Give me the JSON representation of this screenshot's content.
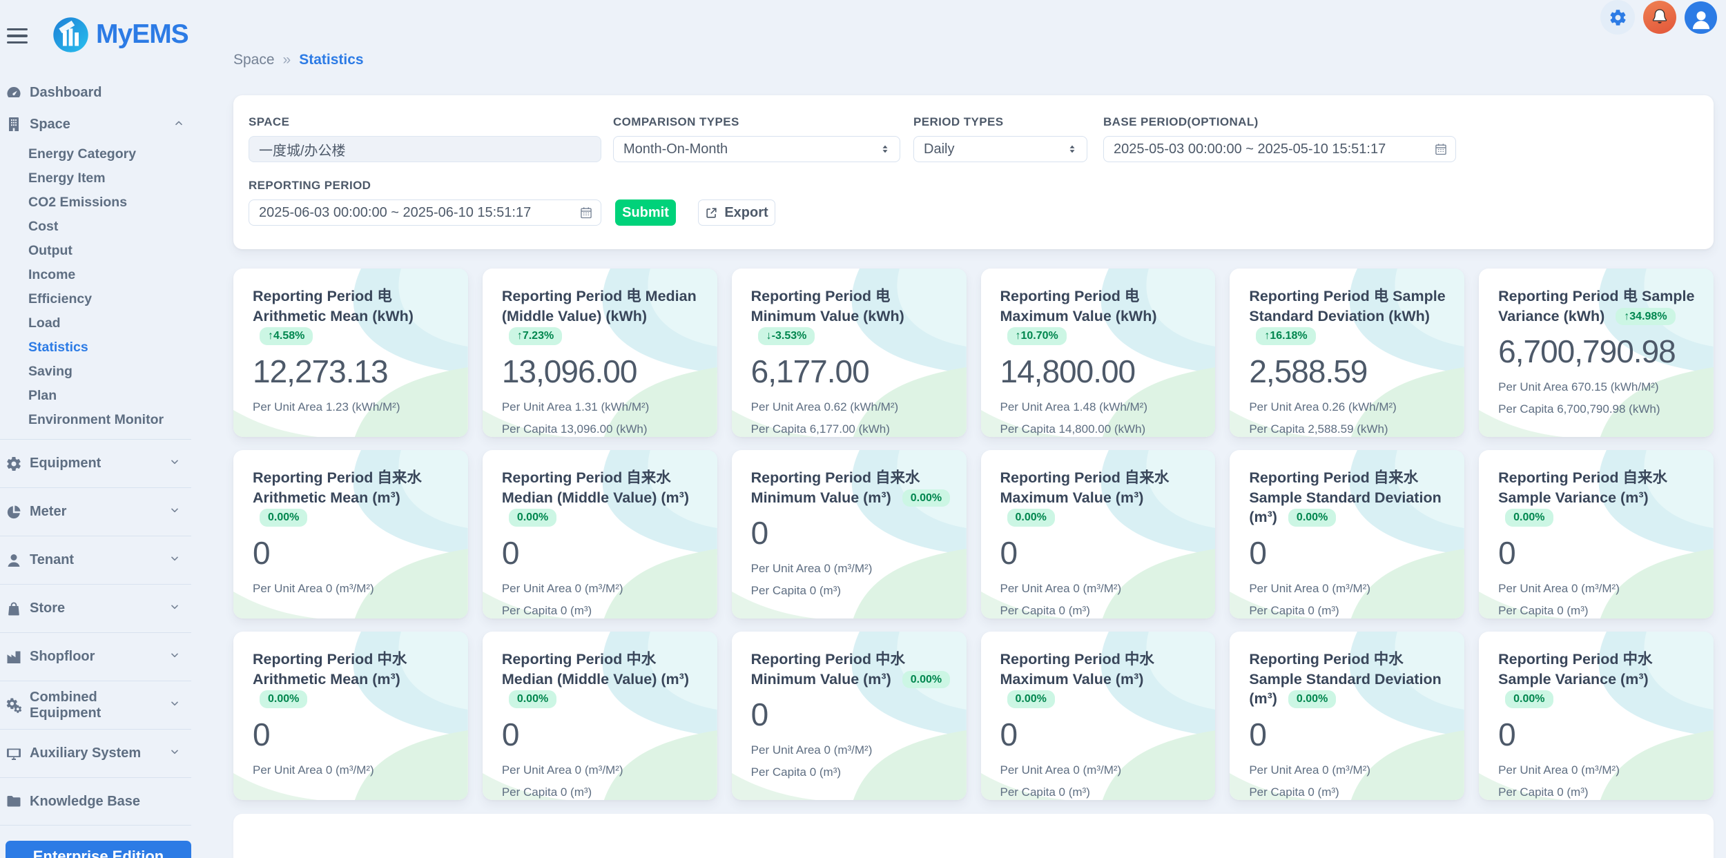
{
  "brand": {
    "title": "MyEMS",
    "logo_icon": "myems-logo-icon"
  },
  "topbar": {
    "icons": [
      {
        "name": "settings-gear-icon"
      },
      {
        "name": "notifications-bell-icon"
      },
      {
        "name": "user-avatar-icon"
      }
    ]
  },
  "sidebar": {
    "enterprise_button": "Enterprise Edition",
    "items": [
      {
        "label": "Dashboard",
        "icon": "gauge-icon"
      },
      {
        "label": "Space",
        "icon": "building-icon",
        "chevron": "up",
        "children": [
          "Energy Category",
          "Energy Item",
          "CO2 Emissions",
          "Cost",
          "Output",
          "Income",
          "Efficiency",
          "Load",
          "Statistics",
          "Saving",
          "Plan",
          "Environment Monitor"
        ],
        "active_child": "Statistics"
      },
      {
        "label": "Equipment",
        "icon": "gear-icon",
        "chevron": "down",
        "group": true
      },
      {
        "label": "Meter",
        "icon": "pie-chart-icon",
        "chevron": "down",
        "group": true
      },
      {
        "label": "Tenant",
        "icon": "person-icon",
        "chevron": "down",
        "group": true
      },
      {
        "label": "Store",
        "icon": "shopping-bag-icon",
        "chevron": "down",
        "group": true
      },
      {
        "label": "Shopfloor",
        "icon": "factory-icon",
        "chevron": "down",
        "group": true
      },
      {
        "label": "Combined Equipment",
        "icon": "gears-icon",
        "chevron": "down",
        "group": true
      },
      {
        "label": "Auxiliary System",
        "icon": "monitor-icon",
        "chevron": "down",
        "group": true
      },
      {
        "label": "Knowledge Base",
        "icon": "folder-icon",
        "group": true,
        "last": true
      }
    ]
  },
  "breadcrumb": {
    "parent": "Space",
    "separator": "»",
    "current": "Statistics"
  },
  "filter": {
    "space": {
      "label": "SPACE",
      "value": "一度城/办公楼"
    },
    "comparison": {
      "label": "COMPARISON TYPES",
      "value": "Month-On-Month"
    },
    "period": {
      "label": "PERIOD TYPES",
      "value": "Daily"
    },
    "base_period": {
      "label": "BASE PERIOD(OPTIONAL)",
      "value": "2025-05-03 00:00:00 ~ 2025-05-10 15:51:17"
    },
    "reporting_period": {
      "label": "REPORTING PERIOD",
      "value": "2025-06-03 00:00:00 ~ 2025-06-10 15:51:17"
    },
    "submit_label": "Submit",
    "export_label": "Export"
  },
  "cards": [
    {
      "title": "Reporting Period 电 Arithmetic Mean (kWh)",
      "badge": "↑4.58%",
      "value": "12,273.13",
      "per_unit_area": "Per Unit Area 1.23 (kWh/M²)",
      "per_capita": ""
    },
    {
      "title": "Reporting Period 电 Median (Middle Value) (kWh)",
      "badge": "↑7.23%",
      "value": "13,096.00",
      "per_unit_area": "Per Unit Area 1.31 (kWh/M²)",
      "per_capita": "Per Capita 13,096.00 (kWh)"
    },
    {
      "title": "Reporting Period 电 Minimum Value (kWh)",
      "badge": "↓-3.53%",
      "value": "6,177.00",
      "per_unit_area": "Per Unit Area 0.62 (kWh/M²)",
      "per_capita": "Per Capita 6,177.00 (kWh)"
    },
    {
      "title": "Reporting Period 电 Maximum Value (kWh)",
      "badge": "↑10.70%",
      "value": "14,800.00",
      "per_unit_area": "Per Unit Area 1.48 (kWh/M²)",
      "per_capita": "Per Capita 14,800.00 (kWh)"
    },
    {
      "title": "Reporting Period 电 Sample Standard Deviation (kWh)",
      "badge": "↑16.18%",
      "value": "2,588.59",
      "per_unit_area": "Per Unit Area 0.26 (kWh/M²)",
      "per_capita": "Per Capita 2,588.59 (kWh)"
    },
    {
      "title": "Reporting Period 电 Sample Variance (kWh)",
      "badge": "↑34.98%",
      "value": "6,700,790.98",
      "per_unit_area": "Per Unit Area 670.15 (kWh/M²)",
      "per_capita": "Per Capita 6,700,790.98 (kWh)"
    },
    {
      "title": "Reporting Period 自来水 Arithmetic Mean (m³)",
      "badge": "0.00%",
      "value": "0",
      "per_unit_area": "Per Unit Area 0 (m³/M²)",
      "per_capita": ""
    },
    {
      "title": "Reporting Period 自来水 Median (Middle Value) (m³)",
      "badge": "0.00%",
      "value": "0",
      "per_unit_area": "Per Unit Area 0 (m³/M²)",
      "per_capita": "Per Capita 0 (m³)"
    },
    {
      "title": "Reporting Period 自来水 Minimum Value (m³)",
      "badge": "0.00%",
      "value": "0",
      "per_unit_area": "Per Unit Area 0 (m³/M²)",
      "per_capita": "Per Capita 0 (m³)"
    },
    {
      "title": "Reporting Period 自来水 Maximum Value (m³)",
      "badge": "0.00%",
      "value": "0",
      "per_unit_area": "Per Unit Area 0 (m³/M²)",
      "per_capita": "Per Capita 0 (m³)"
    },
    {
      "title": "Reporting Period 自来水 Sample Standard Deviation (m³)",
      "badge": "0.00%",
      "value": "0",
      "per_unit_area": "Per Unit Area 0 (m³/M²)",
      "per_capita": "Per Capita 0 (m³)"
    },
    {
      "title": "Reporting Period 自来水 Sample Variance (m³)",
      "badge": "0.00%",
      "value": "0",
      "per_unit_area": "Per Unit Area 0 (m³/M²)",
      "per_capita": "Per Capita 0 (m³)"
    },
    {
      "title": "Reporting Period 中水 Arithmetic Mean (m³)",
      "badge": "0.00%",
      "value": "0",
      "per_unit_area": "Per Unit Area 0 (m³/M²)",
      "per_capita": ""
    },
    {
      "title": "Reporting Period 中水 Median (Middle Value) (m³)",
      "badge": "0.00%",
      "value": "0",
      "per_unit_area": "Per Unit Area 0 (m³/M²)",
      "per_capita": "Per Capita 0 (m³)"
    },
    {
      "title": "Reporting Period 中水 Minimum Value (m³)",
      "badge": "0.00%",
      "value": "0",
      "per_unit_area": "Per Unit Area 0 (m³/M²)",
      "per_capita": "Per Capita 0 (m³)"
    },
    {
      "title": "Reporting Period 中水 Maximum Value (m³)",
      "badge": "0.00%",
      "value": "0",
      "per_unit_area": "Per Unit Area 0 (m³/M²)",
      "per_capita": "Per Capita 0 (m³)"
    },
    {
      "title": "Reporting Period 中水 Sample Standard Deviation (m³)",
      "badge": "0.00%",
      "value": "0",
      "per_unit_area": "Per Unit Area 0 (m³/M²)",
      "per_capita": "Per Capita 0 (m³)"
    },
    {
      "title": "Reporting Period 中水 Sample Variance (m³)",
      "badge": "0.00%",
      "value": "0",
      "per_unit_area": "Per Unit Area 0 (m³/M²)",
      "per_capita": "Per Capita 0 (m³)"
    }
  ]
}
